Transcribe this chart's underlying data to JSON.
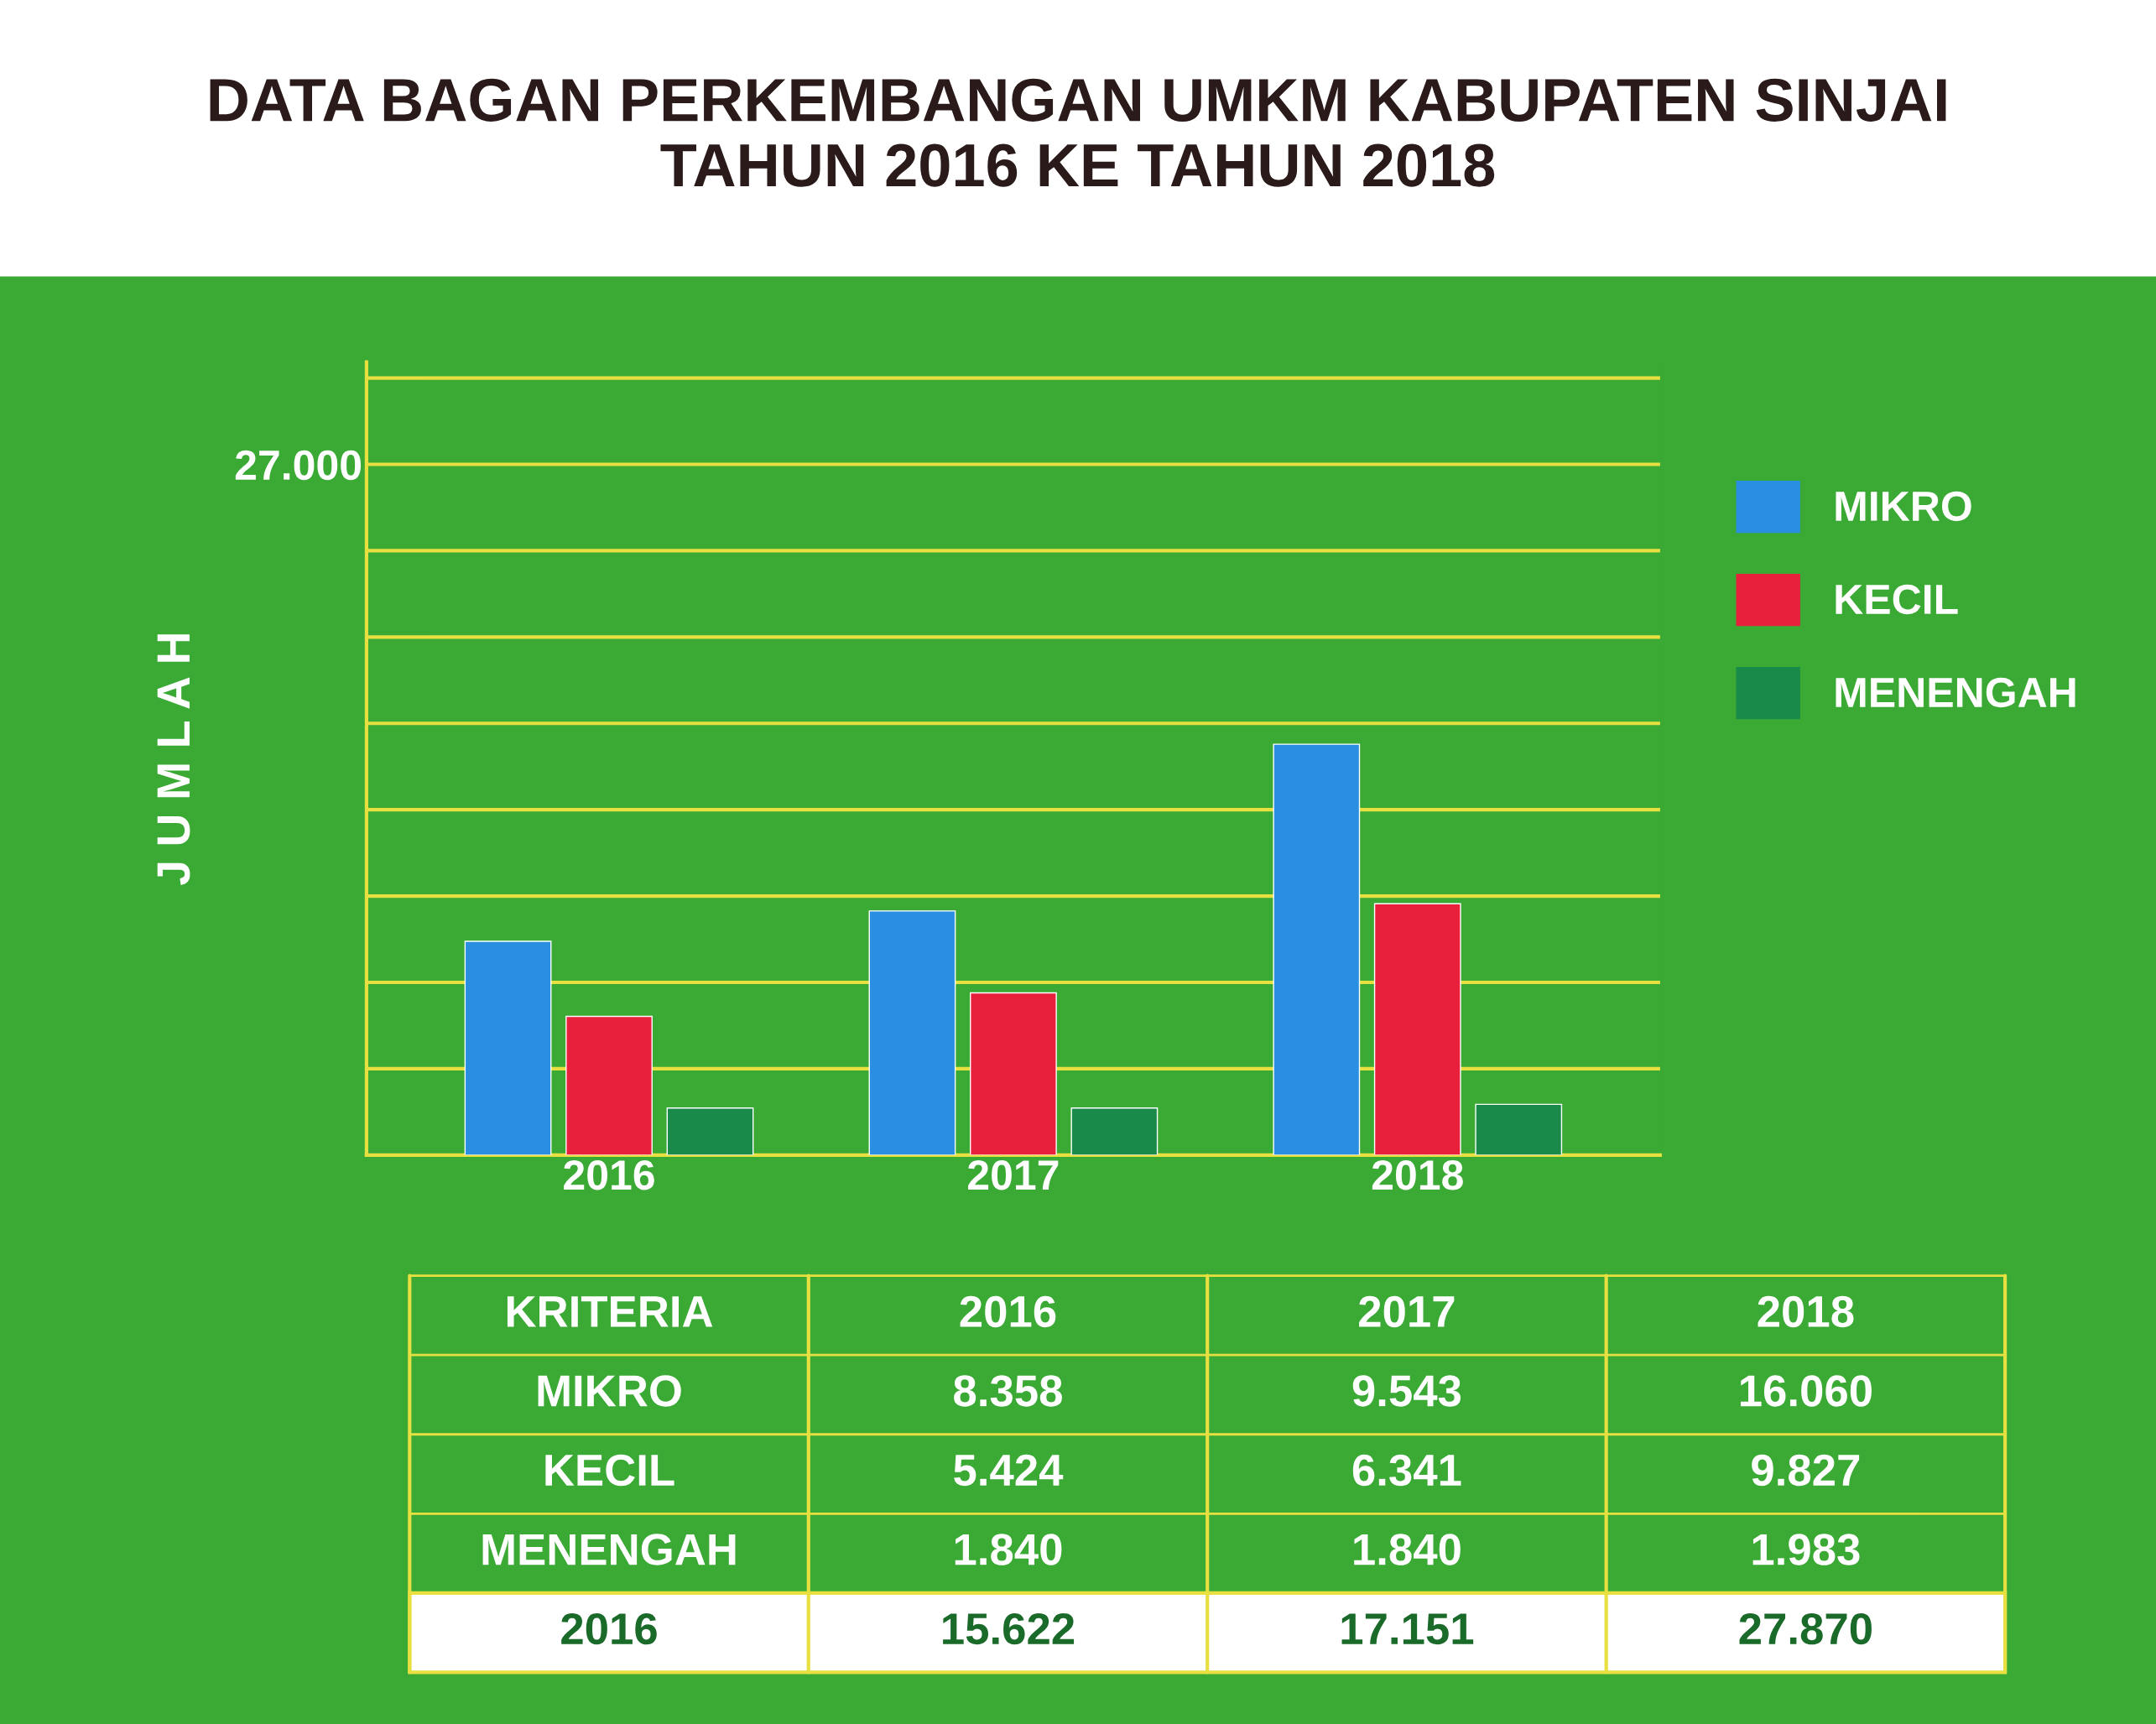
{
  "chart_data": {
    "type": "bar",
    "title": "DATA BAGAN PERKEMBANGAN UMKM KABUPATEN SINJAI\nTAHUN 2016 KE TAHUN 2018",
    "ylabel": "J U M L A H",
    "categories": [
      "2016",
      "2017",
      "2018"
    ],
    "series": [
      {
        "name": "MIKRO",
        "color": "#2a8fe0",
        "values": [
          8358,
          9543,
          16060
        ]
      },
      {
        "name": "KECIL",
        "color": "#e8203c",
        "values": [
          5424,
          6341,
          9827
        ]
      },
      {
        "name": "MENENGAH",
        "color": "#1a8a4a",
        "values": [
          1840,
          1840,
          1983
        ]
      }
    ],
    "annotations": [
      "KRITERIA",
      "8.358",
      "9.543",
      "16.060",
      "5.424",
      "6.341",
      "9.827",
      "1.840",
      "1.840",
      "1.983",
      "2016",
      "15.622",
      "17.151",
      "27.870"
    ],
    "ylim": [
      0,
      31000
    ],
    "yticks": [
      {
        "value": 3375,
        "label": null
      },
      {
        "value": 6750,
        "label": null
      },
      {
        "value": 10125,
        "label": null
      },
      {
        "value": 13500,
        "label": null
      },
      {
        "value": 16875,
        "label": null
      },
      {
        "value": 20250,
        "label": null
      },
      {
        "value": 23625,
        "label": null
      },
      {
        "value": 27000,
        "label": "27.000"
      },
      {
        "value": 30375,
        "label": null
      }
    ],
    "grid": "y",
    "legend": "right"
  }
}
